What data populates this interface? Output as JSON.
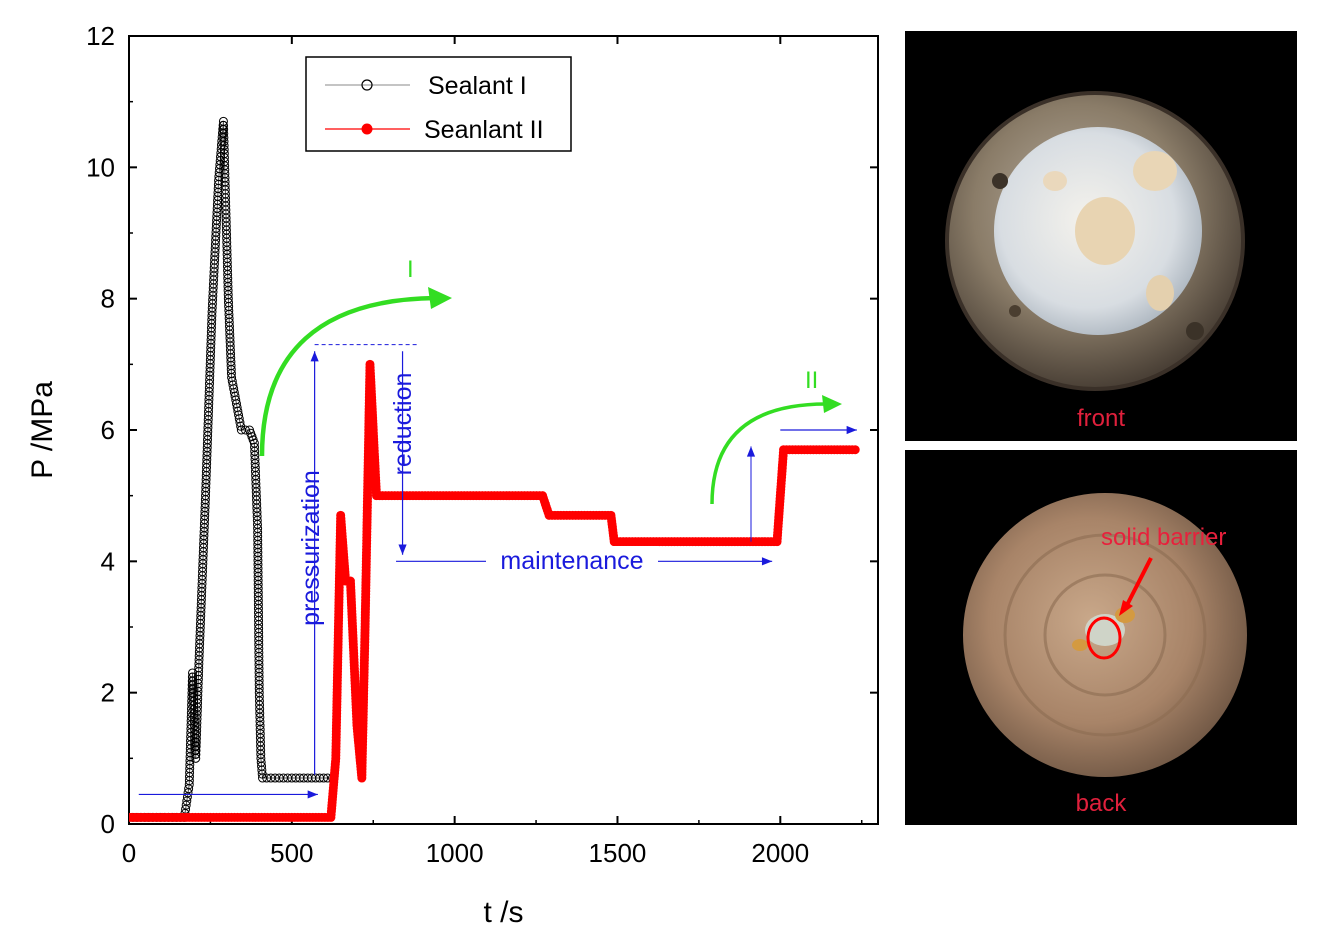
{
  "chart_data": {
    "type": "scatter",
    "xlabel": "t /s",
    "ylabel": "P /MPa",
    "xlim": [
      0,
      2300
    ],
    "ylim": [
      0,
      12
    ],
    "x_ticks": [
      0,
      500,
      1000,
      1500,
      2000
    ],
    "y_ticks": [
      0,
      2,
      4,
      6,
      8,
      10,
      12
    ],
    "legend_position": "top-left inside",
    "grid": false,
    "series": [
      {
        "name": "Sealant I",
        "marker": "open-circle",
        "color": "#000000",
        "points": [
          [
            0,
            0.1
          ],
          [
            170,
            0.1
          ],
          [
            185,
            0.6
          ],
          [
            195,
            2.3
          ],
          [
            205,
            1.0
          ],
          [
            215,
            2.5
          ],
          [
            235,
            5.0
          ],
          [
            255,
            7.8
          ],
          [
            275,
            9.8
          ],
          [
            290,
            10.7
          ],
          [
            305,
            8.0
          ],
          [
            315,
            6.8
          ],
          [
            330,
            6.4
          ],
          [
            345,
            6.0
          ],
          [
            370,
            6.0
          ],
          [
            385,
            5.8
          ],
          [
            395,
            4.5
          ],
          [
            400,
            2.0
          ],
          [
            405,
            1.0
          ],
          [
            410,
            0.7
          ],
          [
            500,
            0.7
          ],
          [
            610,
            0.7
          ],
          [
            625,
            0.7
          ]
        ]
      },
      {
        "name": "Seanlant II",
        "marker": "filled-circle",
        "color": "#ff0000",
        "points": [
          [
            0,
            0.1
          ],
          [
            500,
            0.1
          ],
          [
            620,
            0.1
          ],
          [
            635,
            1.0
          ],
          [
            650,
            4.7
          ],
          [
            665,
            3.7
          ],
          [
            680,
            3.7
          ],
          [
            700,
            1.5
          ],
          [
            715,
            0.7
          ],
          [
            725,
            3.0
          ],
          [
            740,
            7.0
          ],
          [
            750,
            6.0
          ],
          [
            760,
            5.0
          ],
          [
            900,
            5.0
          ],
          [
            1270,
            5.0
          ],
          [
            1290,
            4.7
          ],
          [
            1480,
            4.7
          ],
          [
            1490,
            4.3
          ],
          [
            1990,
            4.3
          ],
          [
            2000,
            5.0
          ],
          [
            2010,
            5.7
          ],
          [
            2230,
            5.7
          ]
        ]
      }
    ],
    "annotations": {
      "pressurization": "pressurization",
      "reduction": "reduction",
      "maintenance": "maintenance",
      "stage_1": "I",
      "stage_2": "II"
    }
  },
  "photos": {
    "front_label": "front",
    "back_label": "back",
    "barrier_label": "solid barrier"
  },
  "colors": {
    "annotation_blue": "#1a1adc",
    "curve_green": "#33dd22",
    "series_red": "#ff0000",
    "series_black": "#000000",
    "label_red": "#e0203c"
  }
}
